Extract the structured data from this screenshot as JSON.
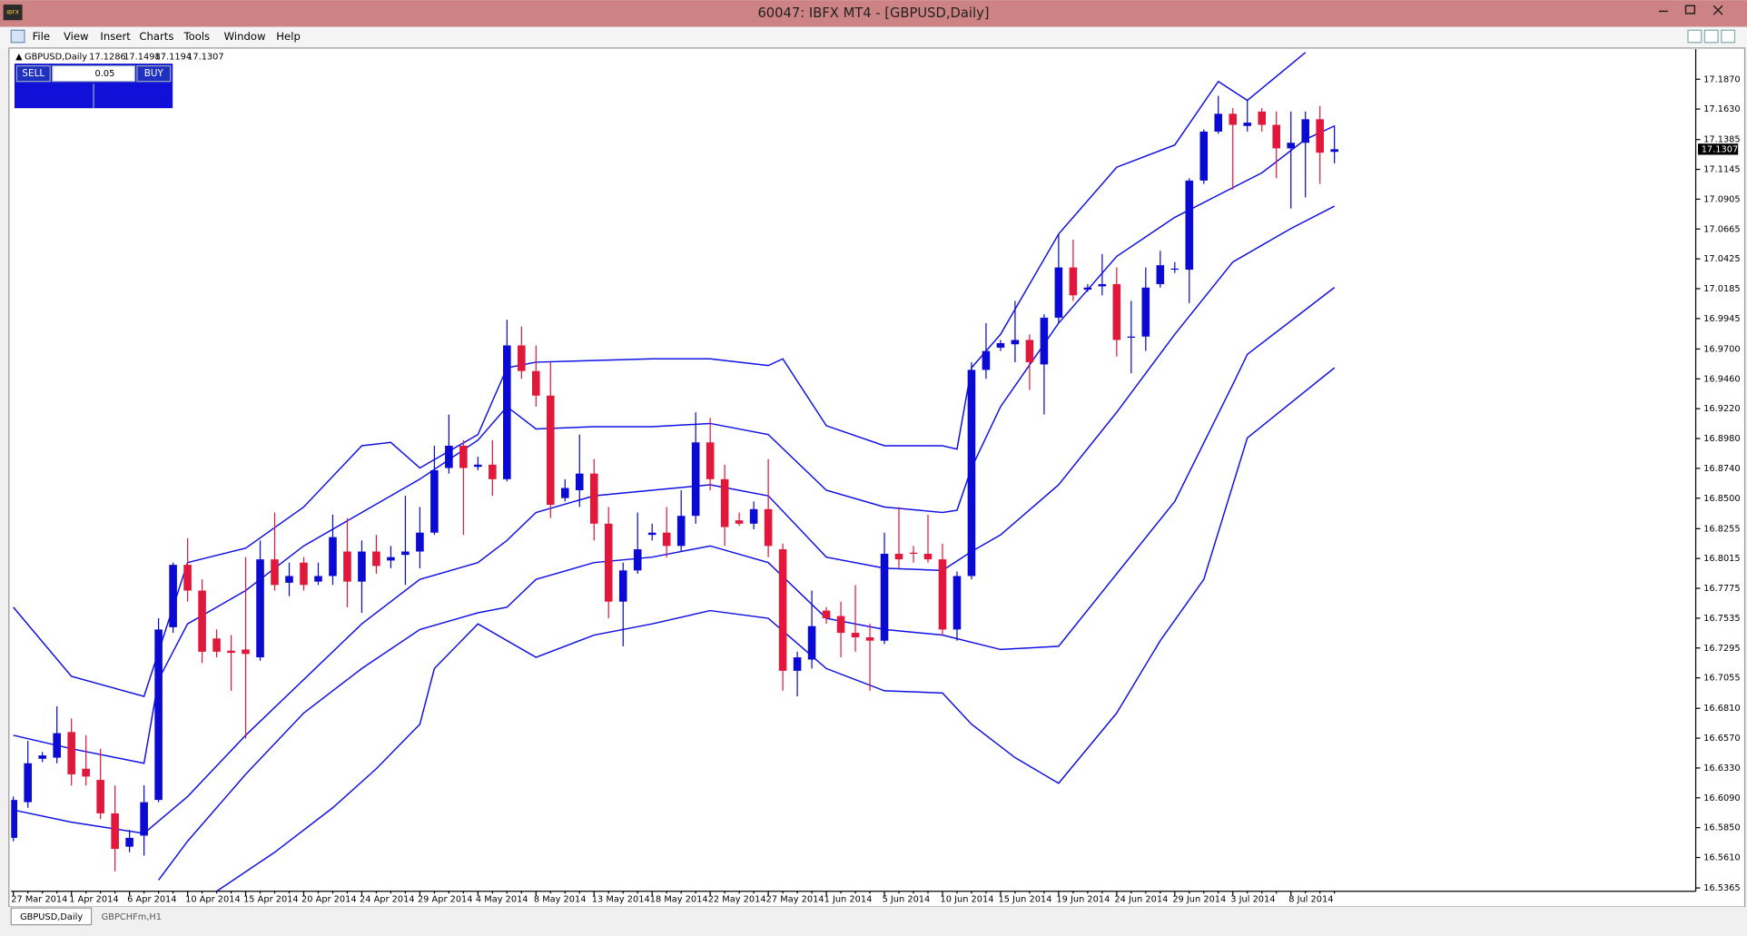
{
  "window": {
    "icon": "IBFX",
    "title": "60047: IBFX MT4 - [GBPUSD,Daily]"
  },
  "menu": [
    "File",
    "View",
    "Insert",
    "Charts",
    "Tools",
    "Window",
    "Help"
  ],
  "trade_panel": {
    "sell": "SELL",
    "lot": "0.05",
    "buy": "BUY"
  },
  "tabs": [
    "GBPUSD,Daily",
    "GBPCHFm,H1"
  ],
  "chart_data": {
    "type": "candlestick",
    "symbol": "GBPUSD,Daily",
    "up_color": "#0a0ad2",
    "down_color": "#e0193c",
    "categories": [
      "27 Mar 2014",
      null,
      null,
      null,
      "1 Apr 2014",
      null,
      null,
      null,
      "6 Apr 2014",
      null,
      null,
      null,
      "10 Apr 2014",
      null,
      null,
      null,
      "15 Apr 2014",
      null,
      null,
      null,
      "20 Apr 2014",
      null,
      null,
      null,
      "24 Apr 2014",
      null,
      null,
      null,
      "29 Apr 2014",
      null,
      null,
      null,
      "4 May 2014",
      null,
      null,
      null,
      "8 May 2014",
      null,
      null,
      null,
      "13 May 2014",
      null,
      null,
      null,
      "18 May 2014",
      null,
      null,
      null,
      "22 May 2014",
      null,
      null,
      null,
      "27 May 2014",
      null,
      null,
      null,
      "1 Jun 2014",
      null,
      null,
      null,
      "5 Jun 2014",
      null,
      null,
      null,
      "10 Jun 2014",
      null,
      null,
      null,
      "15 Jun 2014",
      null,
      null,
      null,
      "19 Jun 2014",
      null,
      null,
      null,
      "24 Jun 2014",
      null,
      null,
      null,
      "29 Jun 2014",
      null,
      null,
      null,
      "3 Jul 2014",
      null,
      null,
      null,
      "8 Jul 2014",
      null,
      null,
      null
    ],
    "open": [
      16.5768,
      16.6055,
      16.6404,
      16.6413,
      16.6619,
      16.6324,
      16.6234,
      16.5965,
      16.5697,
      16.5786,
      16.6073,
      16.7462,
      16.7964,
      16.7757,
      16.7372,
      16.7274,
      16.7283,
      16.722,
      16.8008,
      16.782,
      16.7982,
      16.7829,
      16.7874,
      16.8071,
      16.7829,
      16.8071,
      16.7999,
      16.8044,
      16.8071,
      16.8223,
      16.8743,
      16.8922,
      16.8752,
      16.877,
      16.8653,
      16.9729,
      16.9523,
      16.9325,
      16.8501,
      16.8564,
      16.8698,
      16.8295,
      16.7668,
      16.7919,
      16.8205,
      16.8223,
      16.8116,
      16.8358,
      16.8949,
      16.8653,
      16.8322,
      16.8295,
      16.8412,
      16.8089,
      16.7112,
      16.7202,
      16.7596,
      16.7552,
      16.7417,
      16.7381,
      16.7354,
      16.8053,
      16.8062,
      16.8053,
      16.8008,
      16.7444,
      16.7874,
      16.9532,
      16.9711,
      16.9738,
      16.9773,
      16.9576,
      16.9952,
      17.0356,
      17.0177,
      17.0204,
      17.0222,
      16.9791,
      16.98,
      17.0222,
      17.0338,
      17.0338,
      17.1055,
      17.1449,
      17.1592,
      17.1494,
      17.161,
      17.1503,
      17.1314,
      17.1359,
      17.1548,
      17.1286
    ],
    "high": [
      16.61,
      16.6548,
      16.6458,
      16.6825,
      16.6727,
      16.6593,
      16.6485,
      16.619,
      16.5831,
      16.619,
      16.7534,
      16.7982,
      16.8178,
      16.7847,
      16.7444,
      16.7399,
      16.8026,
      16.816,
      16.8385,
      16.7982,
      16.8026,
      16.7982,
      16.8367,
      16.834,
      16.816,
      16.8205,
      16.8116,
      16.8519,
      16.8429,
      16.8922,
      16.9173,
      16.8967,
      16.8833,
      16.8967,
      16.9935,
      16.9881,
      16.9729,
      16.9594,
      16.8653,
      16.9012,
      16.8815,
      16.8429,
      16.7982,
      16.8385,
      16.8295,
      16.8429,
      16.8564,
      16.9191,
      16.9146,
      16.877,
      16.8385,
      16.8474,
      16.8815,
      16.8134,
      16.7265,
      16.7757,
      16.7623,
      16.7668,
      16.7802,
      16.7489,
      16.8223,
      16.8429,
      16.8116,
      16.8367,
      16.8134,
      16.791,
      16.9594,
      16.9908,
      16.9773,
      17.0087,
      16.9818,
      16.9979,
      17.0625,
      17.058,
      17.0222,
      17.0464,
      17.0356,
      17.0087,
      17.0356,
      17.049,
      17.04,
      17.1073,
      17.1467,
      17.1736,
      17.1637,
      17.17,
      17.1637,
      17.161,
      17.161,
      17.161,
      17.1655,
      17.1498
    ],
    "low": [
      16.5741,
      16.601,
      16.6377,
      16.6368,
      16.619,
      16.619,
      16.5921,
      16.5499,
      16.5652,
      16.5625,
      16.6055,
      16.7417,
      16.7668,
      16.7175,
      16.722,
      16.6951,
      16.6566,
      16.7193,
      16.7757,
      16.7712,
      16.7757,
      16.7802,
      16.7802,
      16.7623,
      16.7578,
      16.7892,
      16.7937,
      16.7802,
      16.7937,
      16.8205,
      16.8698,
      16.8205,
      16.8725,
      16.8519,
      16.8635,
      16.946,
      16.9236,
      16.834,
      16.8474,
      16.8429,
      16.816,
      16.7534,
      16.7309,
      16.7892,
      16.816,
      16.8026,
      16.8071,
      16.8295,
      16.8564,
      16.8116,
      16.8277,
      16.825,
      16.8026,
      16.6951,
      16.6906,
      16.713,
      16.7489,
      16.722,
      16.7265,
      16.6951,
      16.7327,
      16.7937,
      16.7982,
      16.7982,
      16.7399,
      16.7354,
      16.7847,
      16.946,
      16.9684,
      16.9594,
      16.937,
      16.9173,
      16.9908,
      17.0087,
      17.0159,
      17.0132,
      16.9639,
      16.9505,
      16.9684,
      17.0194,
      17.0311,
      17.0069,
      17.1028,
      17.1431,
      17.0983,
      17.1449,
      17.1449,
      17.1073,
      17.083,
      17.092,
      17.1028,
      17.1194
    ],
    "close": [
      16.6073,
      16.6368,
      16.6431,
      16.661,
      16.6279,
      16.6261,
      16.5965,
      16.5679,
      16.5768,
      16.6055,
      16.7444,
      16.7964,
      16.7757,
      16.7265,
      16.7265,
      16.7256,
      16.7247,
      16.8008,
      16.7802,
      16.7874,
      16.7802,
      16.7874,
      16.8187,
      16.7829,
      16.8071,
      16.7955,
      16.8026,
      16.8071,
      16.8223,
      16.8725,
      16.8922,
      16.8743,
      16.877,
      16.8653,
      16.9729,
      16.9523,
      16.9325,
      16.8447,
      16.8582,
      16.8698,
      16.8295,
      16.7668,
      16.7919,
      16.8089,
      16.8223,
      16.8116,
      16.8358,
      16.8949,
      16.8653,
      16.8268,
      16.8295,
      16.8412,
      16.8116,
      16.7112,
      16.722,
      16.7471,
      16.7534,
      16.7417,
      16.7381,
      16.7354,
      16.8053,
      16.8008,
      16.8053,
      16.8008,
      16.7444,
      16.7874,
      16.9532,
      16.9684,
      16.9747,
      16.9773,
      16.9594,
      16.9952,
      17.0356,
      17.0132,
      17.0194,
      17.0222,
      16.9773,
      16.98,
      17.0194,
      17.0374,
      17.0347,
      17.1055,
      17.1449,
      17.1592,
      17.1503,
      17.1521,
      17.1503,
      17.1314,
      17.1359,
      17.1548,
      17.1279,
      17.1307
    ],
    "series": [
      {
        "color": "#0f0fe6",
        "x": [
          0,
          4,
          9,
          12,
          16,
          20,
          24,
          26,
          28,
          32,
          34,
          36,
          44,
          48,
          52,
          53,
          56,
          60,
          64,
          65,
          66,
          68,
          72,
          76,
          80,
          83,
          85,
          89
        ],
        "values": [
          16.7623,
          16.7067,
          16.6906,
          16.7982,
          16.8098,
          16.8429,
          16.8922,
          16.8949,
          16.8743,
          16.9012,
          16.9549,
          16.9594,
          16.9621,
          16.9621,
          16.9567,
          16.9621,
          16.9083,
          16.8922,
          16.8922,
          16.8895,
          16.9549,
          16.9818,
          17.0625,
          17.1162,
          17.1341,
          17.1852,
          17.17,
          17.2085
        ]
      },
      {
        "color": "#0f0fe6",
        "x": [
          0,
          4,
          9,
          10,
          12,
          16,
          20,
          24,
          28,
          32,
          34,
          36,
          40,
          44,
          48,
          52,
          56,
          60,
          64,
          65,
          66,
          68,
          72,
          76,
          80,
          83,
          86,
          89,
          91
        ],
        "values": [
          16.6593,
          16.6485,
          16.6368,
          16.7041,
          16.7489,
          16.7757,
          16.8116,
          16.8385,
          16.8653,
          16.8967,
          16.9236,
          16.9057,
          16.9075,
          16.9075,
          16.9101,
          16.9012,
          16.8564,
          16.8429,
          16.8385,
          16.8403,
          16.8743,
          16.9236,
          16.9908,
          17.0445,
          17.0759,
          17.0938,
          17.1117,
          17.1386,
          17.1494
        ]
      },
      {
        "color": "#0f0fe6",
        "x": [
          0,
          4,
          9,
          12,
          16,
          20,
          24,
          28,
          32,
          34,
          36,
          40,
          44,
          48,
          52,
          56,
          60,
          64,
          66,
          68,
          72,
          76,
          80,
          84,
          88,
          91
        ],
        "values": [
          16.5992,
          16.5894,
          16.5804,
          16.61,
          16.6593,
          16.7041,
          16.7489,
          16.7847,
          16.7982,
          16.816,
          16.8385,
          16.8519,
          16.8564,
          16.8608,
          16.8519,
          16.8026,
          16.7937,
          16.7919,
          16.8071,
          16.8205,
          16.8608,
          16.9191,
          16.9818,
          17.04,
          17.0669,
          17.0849
        ]
      },
      {
        "color": "#0f0fe6",
        "x": [
          10,
          12,
          16,
          20,
          24,
          28,
          32,
          34,
          36,
          40,
          44,
          48,
          52,
          56,
          60,
          64,
          68,
          72,
          76,
          80,
          84,
          85,
          91
        ],
        "values": [
          16.5428,
          16.5741,
          16.6279,
          16.6772,
          16.713,
          16.7444,
          16.7578,
          16.7623,
          16.7847,
          16.7982,
          16.8026,
          16.8116,
          16.7982,
          16.7534,
          16.7444,
          16.7399,
          16.7283,
          16.7309,
          16.7892,
          16.8474,
          16.9415,
          16.9657,
          17.0195
        ]
      },
      {
        "color": "#0f0fe6",
        "x": [
          14,
          18,
          22,
          25,
          28,
          29,
          32,
          36,
          40,
          44,
          48,
          52,
          56,
          60,
          64,
          66,
          69,
          72,
          76,
          79,
          82,
          85,
          91
        ],
        "values": [
          16.5338,
          16.5652,
          16.601,
          16.6324,
          16.6682,
          16.713,
          16.7489,
          16.722,
          16.7399,
          16.7489,
          16.7596,
          16.7534,
          16.713,
          16.6951,
          16.6933,
          16.6682,
          16.6413,
          16.6207,
          16.6772,
          16.7354,
          16.7847,
          16.8985,
          16.9549
        ]
      }
    ],
    "ylim": [
      16.5338,
      17.2103
    ],
    "yticks": [
      {
        "value": 17.187,
        "label": "17.1870"
      },
      {
        "value": 17.163,
        "label": "17.1630"
      },
      17.1385,
      17.1145,
      17.0905,
      17.0665,
      17.0425,
      17.0185,
      16.9945,
      {
        "value": 16.97,
        "label": "16.9700"
      },
      {
        "value": 16.946,
        "label": "16.9460"
      },
      {
        "value": 16.922,
        "label": "16.9220"
      },
      {
        "value": 16.898,
        "label": "16.8980"
      },
      {
        "value": 16.874,
        "label": "16.8740"
      },
      {
        "value": 16.85,
        "label": "16.8500"
      },
      16.8255,
      16.8015,
      16.7775,
      16.7535,
      16.7295,
      16.7055,
      {
        "value": 16.681,
        "label": "16.6810"
      },
      {
        "value": 16.657,
        "label": "16.6570"
      },
      {
        "value": 16.633,
        "label": "16.6330"
      },
      {
        "value": 16.609,
        "label": "16.6090"
      },
      {
        "value": 16.585,
        "label": "16.5850"
      },
      {
        "value": 16.561,
        "label": "16.5610"
      },
      16.5365
    ]
  }
}
